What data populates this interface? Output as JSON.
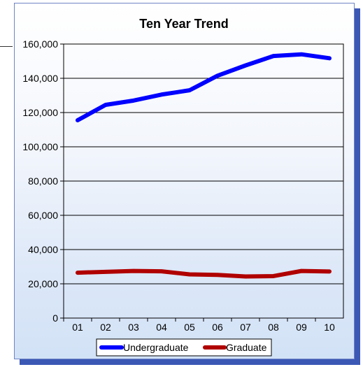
{
  "chart_data": {
    "type": "line",
    "title": "Ten Year Trend",
    "xlabel": "",
    "ylabel": "",
    "categories": [
      "01",
      "02",
      "03",
      "04",
      "05",
      "06",
      "07",
      "08",
      "09",
      "10"
    ],
    "ylim": [
      0,
      160000
    ],
    "yticks": [
      0,
      20000,
      40000,
      60000,
      80000,
      100000,
      120000,
      140000,
      160000
    ],
    "ytick_labels": [
      "0",
      "20,000",
      "40,000",
      "60,000",
      "80,000",
      "100,000",
      "120,000",
      "140,000",
      "160,000"
    ],
    "grid": true,
    "legend_position": "bottom",
    "series": [
      {
        "name": "Undergraduate",
        "color": "#0000ff",
        "values": [
          115500,
          124500,
          127000,
          130500,
          133000,
          141500,
          147500,
          153000,
          154000,
          151700
        ]
      },
      {
        "name": "Graduate",
        "color": "#b00000",
        "values": [
          26500,
          27000,
          27500,
          27300,
          25500,
          25200,
          24300,
          24500,
          27500,
          27200
        ]
      }
    ]
  },
  "colors": {
    "frame_shadow": "#3b58b5",
    "frame_border": "#6f84c4"
  }
}
